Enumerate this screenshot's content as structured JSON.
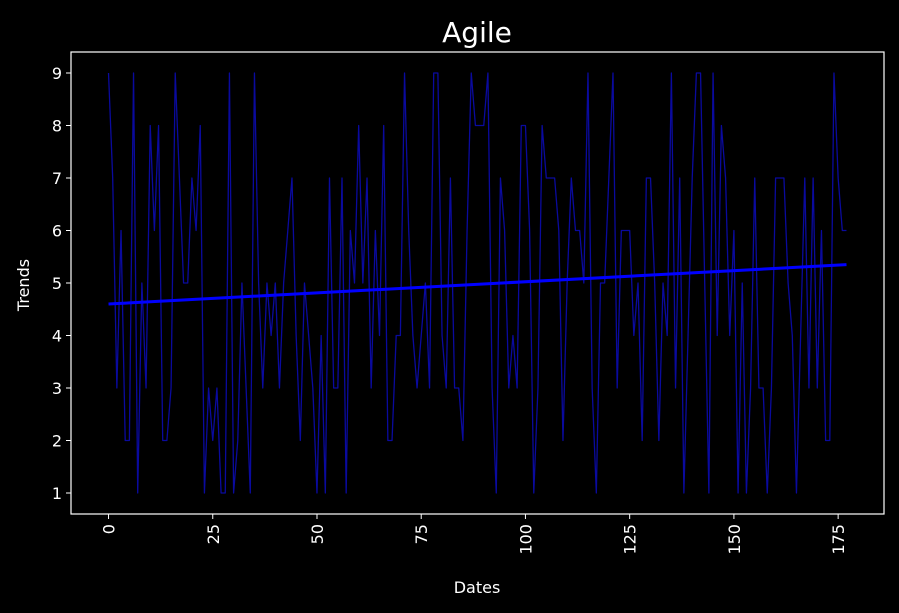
{
  "chart_data": {
    "type": "line",
    "title": "Agile",
    "xlabel": "Dates",
    "ylabel": "Trends",
    "xlim": [
      -9,
      186
    ],
    "ylim": [
      0.6,
      9.4
    ],
    "x_ticks": [
      0,
      25,
      50,
      75,
      100,
      125,
      150,
      175
    ],
    "y_ticks": [
      1,
      2,
      3,
      4,
      5,
      6,
      7,
      8,
      9
    ],
    "x_tick_rotation": 90,
    "grid": false,
    "legend": "none",
    "colors": {
      "background": "#000000",
      "axes": "#ffffff",
      "series_line": "#0a0a9e",
      "trend_line": "#0000ff"
    },
    "series": [
      {
        "style": "thin-line",
        "x": [
          0,
          1,
          2,
          3,
          4,
          5,
          6,
          7,
          8,
          9,
          10,
          11,
          12,
          13,
          14,
          15,
          16,
          17,
          18,
          19,
          20,
          21,
          22,
          23,
          24,
          25,
          26,
          27,
          28,
          29,
          30,
          31,
          32,
          33,
          34,
          35,
          36,
          37,
          38,
          39,
          40,
          41,
          42,
          43,
          44,
          45,
          46,
          47,
          48,
          49,
          50,
          51,
          52,
          53,
          54,
          55,
          56,
          57,
          58,
          59,
          60,
          61,
          62,
          63,
          64,
          65,
          66,
          67,
          68,
          69,
          70,
          71,
          72,
          73,
          74,
          75,
          76,
          77,
          78,
          79,
          80,
          81,
          82,
          83,
          84,
          85,
          86,
          87,
          88,
          89,
          90,
          91,
          92,
          93,
          94,
          95,
          96,
          97,
          98,
          99,
          100,
          101,
          102,
          103,
          104,
          105,
          106,
          107,
          108,
          109,
          110,
          111,
          112,
          113,
          114,
          115,
          116,
          117,
          118,
          119,
          120,
          121,
          122,
          123,
          124,
          125,
          126,
          127,
          128,
          129,
          130,
          131,
          132,
          133,
          134,
          135,
          136,
          137,
          138,
          139,
          140,
          141,
          142,
          143,
          144,
          145,
          146,
          147,
          148,
          149,
          150,
          151,
          152,
          153,
          154,
          155,
          156,
          157,
          158,
          159,
          160,
          161,
          162,
          163,
          164,
          165,
          166,
          167,
          168,
          169,
          170,
          171,
          172,
          173,
          174,
          175,
          176,
          177
        ],
        "values": [
          9,
          7,
          3,
          6,
          2,
          2,
          9,
          1,
          5,
          3,
          8,
          6,
          8,
          2,
          2,
          3,
          9,
          7,
          5,
          5,
          7,
          6,
          8,
          1,
          3,
          2,
          3,
          1,
          1,
          9,
          1,
          2,
          5,
          3,
          1,
          9,
          5,
          3,
          5,
          4,
          5,
          3,
          5,
          6,
          7,
          4,
          2,
          5,
          4,
          3,
          1,
          4,
          1,
          7,
          3,
          3,
          7,
          1,
          6,
          5,
          8,
          5,
          7,
          3,
          6,
          4,
          8,
          2,
          2,
          4,
          4,
          9,
          6,
          4,
          3,
          4,
          5,
          3,
          9,
          9,
          4,
          3,
          7,
          3,
          3,
          2,
          6,
          9,
          8,
          8,
          8,
          9,
          3,
          1,
          7,
          6,
          3,
          4,
          3,
          8,
          8,
          6,
          1,
          3,
          8,
          7,
          7,
          7,
          6,
          2,
          5,
          7,
          6,
          6,
          5,
          9,
          3,
          1,
          5,
          5,
          7,
          9,
          3,
          6,
          6,
          6,
          4,
          5,
          2,
          7,
          7,
          5,
          2,
          5,
          4,
          9,
          3,
          7,
          1,
          4,
          7,
          9,
          9,
          5,
          1,
          9,
          4,
          8,
          7,
          4,
          6,
          1,
          5,
          1,
          3,
          7,
          3,
          3,
          1,
          3,
          7,
          7,
          7,
          5,
          4,
          1,
          4,
          7,
          3,
          7,
          3,
          6,
          2,
          2,
          9,
          7,
          6,
          6
        ]
      },
      {
        "style": "trend-line",
        "x": [
          0,
          177
        ],
        "values": [
          4.6,
          5.35
        ]
      }
    ]
  }
}
